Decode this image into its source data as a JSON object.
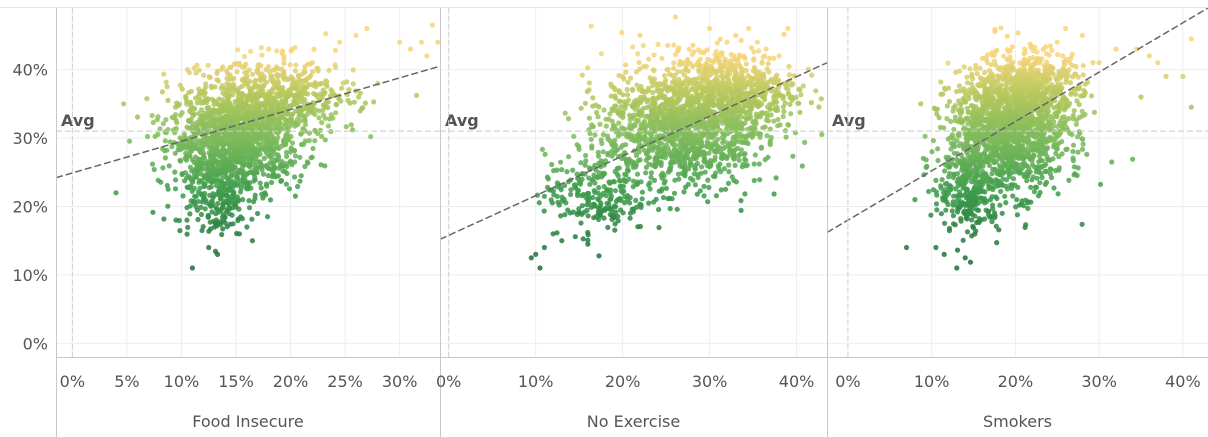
{
  "chart_data": {
    "type": "scatter",
    "y_axis": {
      "range": [
        -0.02,
        0.49
      ],
      "ticks": [
        0,
        0.1,
        0.2,
        0.3,
        0.4
      ],
      "tick_labels": [
        "0%",
        "10%",
        "20%",
        "30%",
        "40%"
      ]
    },
    "reference_line": {
      "label": "Avg",
      "value": 0.31
    },
    "panels": [
      {
        "xlabel": "Food Insecure",
        "x_range": [
          -0.015,
          0.337
        ],
        "x_ticks": [
          0,
          0.05,
          0.1,
          0.15,
          0.2,
          0.25,
          0.3
        ],
        "x_tick_labels": [
          "0%",
          "5%",
          "10%",
          "15%",
          "20%",
          "25%",
          "30%"
        ],
        "trend": {
          "x": [
            -0.015,
            0.337
          ],
          "y": [
            0.242,
            0.405
          ]
        },
        "cloud": {
          "clusters": [
            {
              "cx": 0.15,
              "cy": 0.3,
              "sx": 0.03,
              "sy": 0.035,
              "n": 1300
            },
            {
              "cx": 0.19,
              "cy": 0.36,
              "sx": 0.035,
              "sy": 0.028,
              "n": 500
            },
            {
              "cx": 0.13,
              "cy": 0.22,
              "sx": 0.018,
              "sy": 0.03,
              "n": 250
            }
          ],
          "outliers": [
            {
              "x": 0.04,
              "y": 0.22
            },
            {
              "x": 0.047,
              "y": 0.35
            },
            {
              "x": 0.095,
              "y": 0.18
            },
            {
              "x": 0.11,
              "y": 0.11
            },
            {
              "x": 0.125,
              "y": 0.14
            },
            {
              "x": 0.133,
              "y": 0.13
            },
            {
              "x": 0.16,
              "y": 0.17
            },
            {
              "x": 0.165,
              "y": 0.15
            },
            {
              "x": 0.18,
              "y": 0.43
            },
            {
              "x": 0.22,
              "y": 0.41
            },
            {
              "x": 0.26,
              "y": 0.45
            },
            {
              "x": 0.27,
              "y": 0.46
            },
            {
              "x": 0.28,
              "y": 0.38
            },
            {
              "x": 0.3,
              "y": 0.44
            },
            {
              "x": 0.31,
              "y": 0.43
            },
            {
              "x": 0.32,
              "y": 0.44
            },
            {
              "x": 0.325,
              "y": 0.42
            },
            {
              "x": 0.33,
              "y": 0.465
            },
            {
              "x": 0.335,
              "y": 0.44
            },
            {
              "x": 0.245,
              "y": 0.44
            }
          ]
        }
      },
      {
        "xlabel": "No Exercise",
        "x_range": [
          -0.01,
          0.435
        ],
        "x_ticks": [
          0,
          0.1,
          0.2,
          0.3,
          0.4
        ],
        "x_tick_labels": [
          "0%",
          "10%",
          "20%",
          "30%",
          "40%"
        ],
        "trend": {
          "x": [
            -0.01,
            0.435
          ],
          "y": [
            0.152,
            0.41
          ]
        },
        "cloud": {
          "clusters": [
            {
              "cx": 0.27,
              "cy": 0.32,
              "sx": 0.045,
              "sy": 0.045,
              "n": 1400
            },
            {
              "cx": 0.33,
              "cy": 0.37,
              "sx": 0.035,
              "sy": 0.03,
              "n": 500
            },
            {
              "cx": 0.17,
              "cy": 0.22,
              "sx": 0.03,
              "sy": 0.03,
              "n": 250
            }
          ],
          "outliers": [
            {
              "x": 0.095,
              "y": 0.125
            },
            {
              "x": 0.1,
              "y": 0.13
            },
            {
              "x": 0.105,
              "y": 0.11
            },
            {
              "x": 0.11,
              "y": 0.14
            },
            {
              "x": 0.12,
              "y": 0.16
            },
            {
              "x": 0.13,
              "y": 0.15
            },
            {
              "x": 0.16,
              "y": 0.145
            },
            {
              "x": 0.22,
              "y": 0.45
            },
            {
              "x": 0.3,
              "y": 0.46
            },
            {
              "x": 0.32,
              "y": 0.44
            },
            {
              "x": 0.33,
              "y": 0.45
            },
            {
              "x": 0.345,
              "y": 0.46
            },
            {
              "x": 0.355,
              "y": 0.44
            },
            {
              "x": 0.365,
              "y": 0.43
            },
            {
              "x": 0.39,
              "y": 0.46
            },
            {
              "x": 0.38,
              "y": 0.42
            }
          ]
        }
      },
      {
        "xlabel": "Smokers",
        "x_range": [
          -0.025,
          0.43
        ],
        "x_ticks": [
          0,
          0.1,
          0.2,
          0.3,
          0.4
        ],
        "x_tick_labels": [
          "0%",
          "10%",
          "20%",
          "30%",
          "40%"
        ],
        "trend": {
          "x": [
            -0.025,
            0.43
          ],
          "y": [
            0.162,
            0.49
          ]
        },
        "cloud": {
          "clusters": [
            {
              "cx": 0.19,
              "cy": 0.31,
              "sx": 0.035,
              "sy": 0.045,
              "n": 1400
            },
            {
              "cx": 0.22,
              "cy": 0.37,
              "sx": 0.03,
              "sy": 0.03,
              "n": 500
            },
            {
              "cx": 0.145,
              "cy": 0.22,
              "sx": 0.018,
              "sy": 0.03,
              "n": 250
            }
          ],
          "outliers": [
            {
              "x": 0.07,
              "y": 0.14
            },
            {
              "x": 0.08,
              "y": 0.21
            },
            {
              "x": 0.105,
              "y": 0.14
            },
            {
              "x": 0.115,
              "y": 0.13
            },
            {
              "x": 0.13,
              "y": 0.11
            },
            {
              "x": 0.14,
              "y": 0.125
            },
            {
              "x": 0.25,
              "y": 0.44
            },
            {
              "x": 0.26,
              "y": 0.46
            },
            {
              "x": 0.28,
              "y": 0.45
            },
            {
              "x": 0.3,
              "y": 0.41
            },
            {
              "x": 0.32,
              "y": 0.43
            },
            {
              "x": 0.345,
              "y": 0.43
            },
            {
              "x": 0.36,
              "y": 0.42
            },
            {
              "x": 0.37,
              "y": 0.41
            },
            {
              "x": 0.38,
              "y": 0.39
            },
            {
              "x": 0.4,
              "y": 0.39
            },
            {
              "x": 0.41,
              "y": 0.345
            },
            {
              "x": 0.41,
              "y": 0.445
            },
            {
              "x": 0.315,
              "y": 0.265
            },
            {
              "x": 0.35,
              "y": 0.36
            }
          ]
        }
      }
    ],
    "color_scale": {
      "stops": [
        "#1e6b3a",
        "#3c9b4c",
        "#7dbb5c",
        "#b4c75c",
        "#f8d57a"
      ],
      "domain": [
        0.12,
        0.22,
        0.3,
        0.36,
        0.42
      ]
    }
  },
  "colors": {
    "grid": "#eeeeee",
    "axis": "#c8c8c8",
    "avg_line": "#c9c9c9",
    "trend_line": "#666666",
    "text": "#555555"
  }
}
